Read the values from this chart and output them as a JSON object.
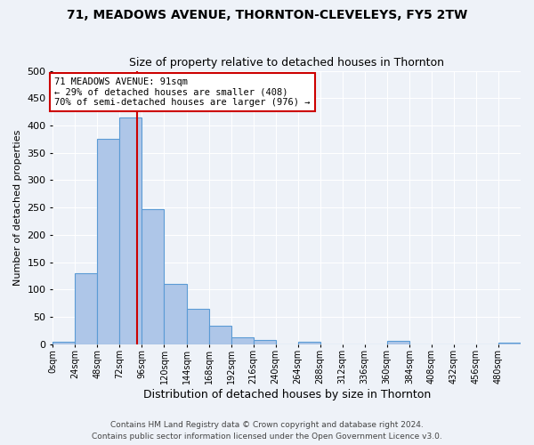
{
  "title1": "71, MEADOWS AVENUE, THORNTON-CLEVELEYS, FY5 2TW",
  "title2": "Size of property relative to detached houses in Thornton",
  "xlabel": "Distribution of detached houses by size in Thornton",
  "ylabel": "Number of detached properties",
  "bin_labels": [
    "0sqm",
    "24sqm",
    "48sqm",
    "72sqm",
    "96sqm",
    "120sqm",
    "144sqm",
    "168sqm",
    "192sqm",
    "216sqm",
    "240sqm",
    "264sqm",
    "288sqm",
    "312sqm",
    "336sqm",
    "360sqm",
    "384sqm",
    "408sqm",
    "432sqm",
    "456sqm",
    "480sqm"
  ],
  "bar_heights": [
    4,
    130,
    375,
    415,
    247,
    110,
    64,
    34,
    13,
    7,
    0,
    5,
    0,
    0,
    0,
    6,
    0,
    0,
    0,
    0,
    2
  ],
  "bar_color": "#aec6e8",
  "bar_edge_color": "#5b9bd5",
  "vline_x": 91,
  "vline_color": "#cc0000",
  "annotation_text": "71 MEADOWS AVENUE: 91sqm\n← 29% of detached houses are smaller (408)\n70% of semi-detached houses are larger (976) →",
  "annotation_box_color": "#ffffff",
  "annotation_box_edge_color": "#cc0000",
  "ylim": [
    0,
    500
  ],
  "yticks": [
    0,
    50,
    100,
    150,
    200,
    250,
    300,
    350,
    400,
    450,
    500
  ],
  "bin_width": 24,
  "footer1": "Contains HM Land Registry data © Crown copyright and database right 2024.",
  "footer2": "Contains public sector information licensed under the Open Government Licence v3.0.",
  "background_color": "#eef2f8",
  "grid_color": "#ffffff"
}
